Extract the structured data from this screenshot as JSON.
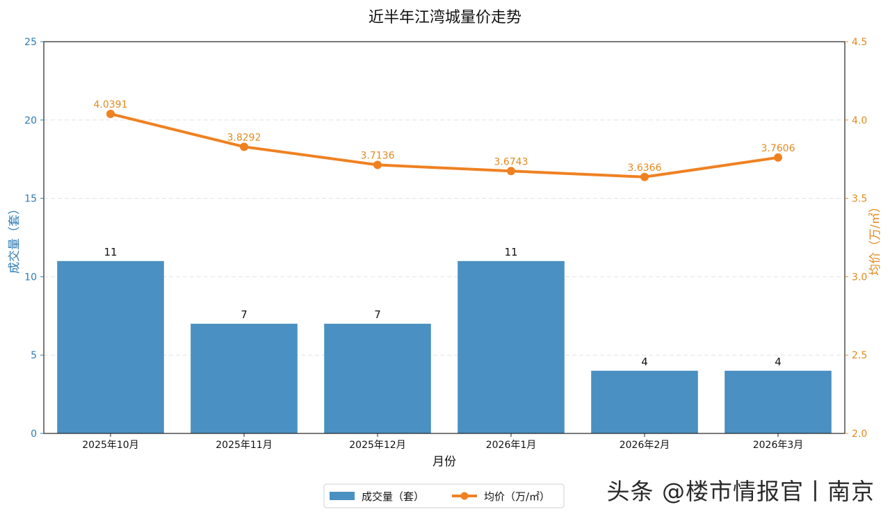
{
  "chart_data": {
    "type": "bar+line",
    "title": "近半年江湾城量价走势",
    "xlabel": "月份",
    "categories": [
      "2025年10月",
      "2025年11月",
      "2025年12月",
      "2026年1月",
      "2026年2月",
      "2026年3月"
    ],
    "series": [
      {
        "name": "成交量（套）",
        "type": "bar",
        "axis": "left",
        "color": "#4a90c2",
        "values": [
          11,
          7,
          7,
          11,
          4,
          4
        ]
      },
      {
        "name": "均价（万/㎡）",
        "type": "line",
        "axis": "right",
        "color": "#ef8121",
        "values": [
          4.0391,
          3.8292,
          3.7136,
          3.6743,
          3.6366,
          3.7606
        ]
      }
    ],
    "y_left": {
      "label": "成交量（套）",
      "range": [
        0,
        25
      ],
      "ticks": [
        0,
        5,
        10,
        15,
        20,
        25
      ],
      "color": "#2e7bb4"
    },
    "y_right": {
      "label": "均价（万/㎡）",
      "range": [
        2.0,
        4.5
      ],
      "ticks": [
        "2.0",
        "2.5",
        "3.0",
        "3.5",
        "4.0",
        "4.5"
      ],
      "color": "#e08a1e"
    },
    "grid": "horizontal-dashed",
    "legend": {
      "placement": "bottom-center"
    }
  },
  "watermark": "头条 @楼市情报官丨南京"
}
